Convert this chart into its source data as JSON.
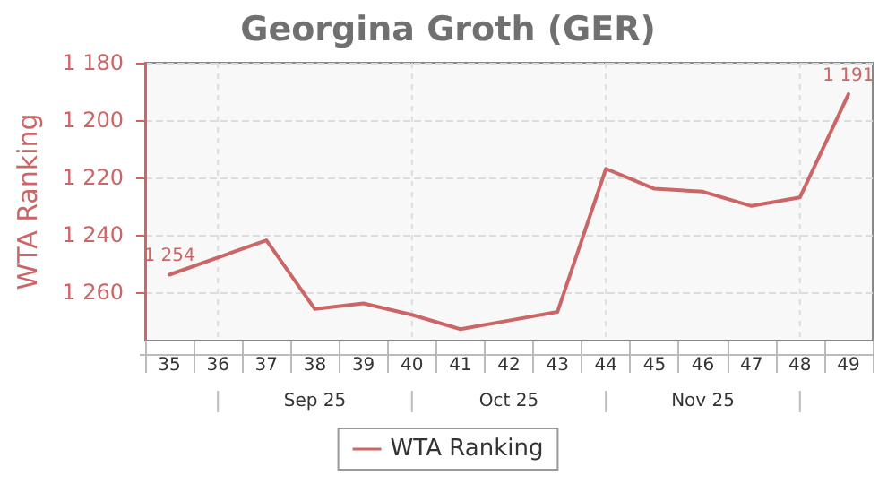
{
  "chart_data": {
    "type": "line",
    "title": "Georgina Groth (GER)",
    "ylabel": "WTA Ranking",
    "categories": [
      "35",
      "36",
      "37",
      "38",
      "39",
      "40",
      "41",
      "42",
      "43",
      "44",
      "45",
      "46",
      "47",
      "48",
      "49"
    ],
    "series": [
      {
        "name": "WTA Ranking",
        "color": "#cc6666",
        "values": [
          1254,
          1248,
          1242,
          1266,
          1264,
          1268,
          1273,
          1270,
          1267,
          1217,
          1224,
          1225,
          1230,
          1227,
          1191
        ],
        "value_labels": [
          "1 254",
          null,
          null,
          null,
          null,
          null,
          null,
          null,
          null,
          null,
          null,
          null,
          null,
          null,
          "1 191"
        ]
      }
    ],
    "ylim": [
      1277,
      1180
    ],
    "yticks": [
      {
        "value": 1180,
        "label": "1 180"
      },
      {
        "value": 1200,
        "label": "1 200"
      },
      {
        "value": 1220,
        "label": "1 220"
      },
      {
        "value": 1240,
        "label": "1 240"
      },
      {
        "value": 1260,
        "label": "1 260"
      }
    ],
    "annotations": [
      "Sep 25",
      "Oct 25",
      "Nov 25"
    ],
    "grid": true,
    "legend": "bottom",
    "marker": "none",
    "line_style": "solid"
  }
}
